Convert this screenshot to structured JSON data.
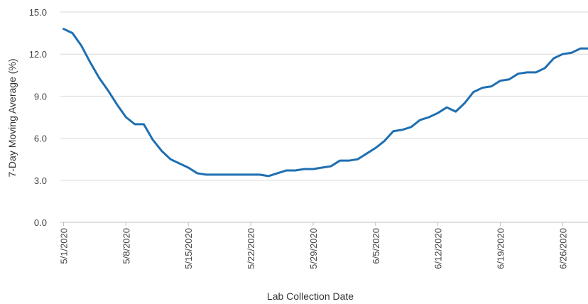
{
  "chart_data": {
    "type": "line",
    "xlabel": "Lab Collection Date",
    "ylabel": "7-Day Moving Average (%)",
    "ylim": [
      0,
      15
    ],
    "y_ticks": [
      "0.0",
      "3.0",
      "6.0",
      "9.0",
      "12.0",
      "15.0"
    ],
    "x_tick_labels": [
      "5/1/2020",
      "5/8/2020",
      "5/15/2020",
      "5/22/2020",
      "5/29/2020",
      "6/5/2020",
      "6/12/2020",
      "6/19/2020",
      "6/26/2020"
    ],
    "x_range": [
      "5/1/2020",
      "6/29/2020"
    ],
    "grid": "horizontal",
    "line_color": "#1f6fb2",
    "series": [
      {
        "x": [
          "5/1/2020",
          "5/2/2020",
          "5/3/2020",
          "5/4/2020",
          "5/5/2020",
          "5/6/2020",
          "5/7/2020",
          "5/8/2020",
          "5/9/2020",
          "5/10/2020",
          "5/11/2020",
          "5/12/2020",
          "5/13/2020",
          "5/14/2020",
          "5/15/2020",
          "5/16/2020",
          "5/17/2020",
          "5/18/2020",
          "5/19/2020",
          "5/20/2020",
          "5/21/2020",
          "5/22/2020",
          "5/23/2020",
          "5/24/2020",
          "5/25/2020",
          "5/26/2020",
          "5/27/2020",
          "5/28/2020",
          "5/29/2020",
          "5/30/2020",
          "5/31/2020",
          "6/1/2020",
          "6/2/2020",
          "6/3/2020",
          "6/4/2020",
          "6/5/2020",
          "6/6/2020",
          "6/7/2020",
          "6/8/2020",
          "6/9/2020",
          "6/10/2020",
          "6/11/2020",
          "6/12/2020",
          "6/13/2020",
          "6/14/2020",
          "6/15/2020",
          "6/16/2020",
          "6/17/2020",
          "6/18/2020",
          "6/19/2020",
          "6/20/2020",
          "6/21/2020",
          "6/22/2020",
          "6/23/2020",
          "6/24/2020",
          "6/25/2020",
          "6/26/2020",
          "6/27/2020",
          "6/28/2020",
          "6/29/2020"
        ],
        "values": [
          13.8,
          13.5,
          12.6,
          11.4,
          10.3,
          9.4,
          8.4,
          7.5,
          7.0,
          7.0,
          5.9,
          5.1,
          4.5,
          4.2,
          3.9,
          3.5,
          3.4,
          3.4,
          3.4,
          3.4,
          3.4,
          3.4,
          3.4,
          3.3,
          3.5,
          3.7,
          3.7,
          3.8,
          3.8,
          3.9,
          4.0,
          4.4,
          4.4,
          4.5,
          4.9,
          5.3,
          5.8,
          6.5,
          6.6,
          6.8,
          7.3,
          7.5,
          7.8,
          8.2,
          7.9,
          8.5,
          9.3,
          9.6,
          9.7,
          10.1,
          10.2,
          10.6,
          10.7,
          10.7,
          11.0,
          11.7,
          12.0,
          12.1,
          12.4,
          12.4
        ]
      }
    ]
  }
}
